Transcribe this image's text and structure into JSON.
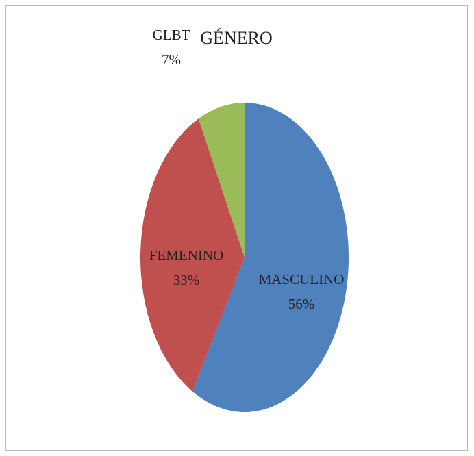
{
  "chart_data": {
    "type": "pie",
    "title": "GÉNERO",
    "categories": [
      "MASCULINO",
      "FEMENINO",
      "GLBT"
    ],
    "values": [
      56,
      33,
      7
    ],
    "value_labels": [
      "56%",
      "33%",
      "7%"
    ],
    "colors": [
      "#4f81bd",
      "#c0504d",
      "#9bbb59"
    ]
  }
}
